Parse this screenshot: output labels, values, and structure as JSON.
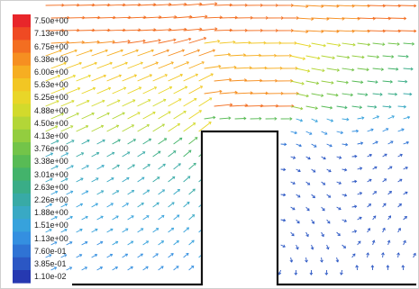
{
  "chart_data": {
    "type": "vector-field",
    "colorbar": {
      "labels": [
        "7.50e+00",
        "7.13e+00",
        "6.75e+00",
        "6.38e+00",
        "6.00e+00",
        "5.63e+00",
        "5.25e+00",
        "4.88e+00",
        "4.50e+00",
        "4.13e+00",
        "3.76e+00",
        "3.38e+00",
        "3.01e+00",
        "2.63e+00",
        "2.26e+00",
        "1.88e+00",
        "1.51e+00",
        "1.13e+00",
        "7.60e-01",
        "3.85e-01",
        "1.10e-02"
      ],
      "colors": [
        "#e8262a",
        "#ef4a23",
        "#f36e21",
        "#f68f21",
        "#f6ae22",
        "#f2c623",
        "#e9d628",
        "#d2da2c",
        "#b3d637",
        "#93cd3f",
        "#73c449",
        "#58bb55",
        "#43b36b",
        "#3aad87",
        "#38aaa6",
        "#39a9c4",
        "#37a2dc",
        "#348fe0",
        "#2f73d4",
        "#2b57c4",
        "#2639b1"
      ],
      "max": 7.5,
      "min": 0.011
    },
    "obstacle": {
      "shape": "rectangle",
      "on": "ground"
    }
  }
}
